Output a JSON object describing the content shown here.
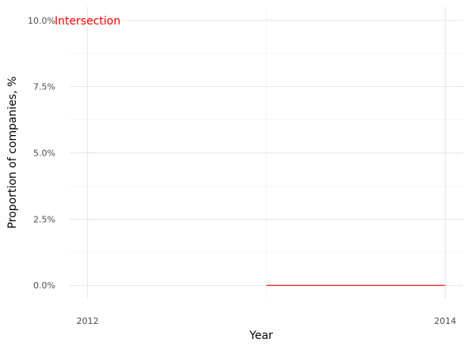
{
  "chart_data": {
    "type": "line",
    "title": "",
    "xlabel": "Year",
    "ylabel": "Proportion of companies, %",
    "x_ticks": [
      2012,
      2014
    ],
    "y_ticks": [
      "0.0%",
      "2.5%",
      "5.0%",
      "7.5%",
      "10.0%"
    ],
    "y_tick_values": [
      0,
      2.5,
      5.0,
      7.5,
      10.0
    ],
    "xlim": [
      2011.9,
      2014.1
    ],
    "ylim": [
      -0.5,
      10.5
    ],
    "grid": true,
    "background": "#ffffff",
    "series": [
      {
        "color": "#e41a1c",
        "x": [
          2013,
          2014
        ],
        "y": [
          0,
          0
        ]
      }
    ],
    "annotations": [
      {
        "text": "Intersection",
        "x": 2012,
        "y": 10,
        "color": "#ff0000"
      }
    ]
  }
}
